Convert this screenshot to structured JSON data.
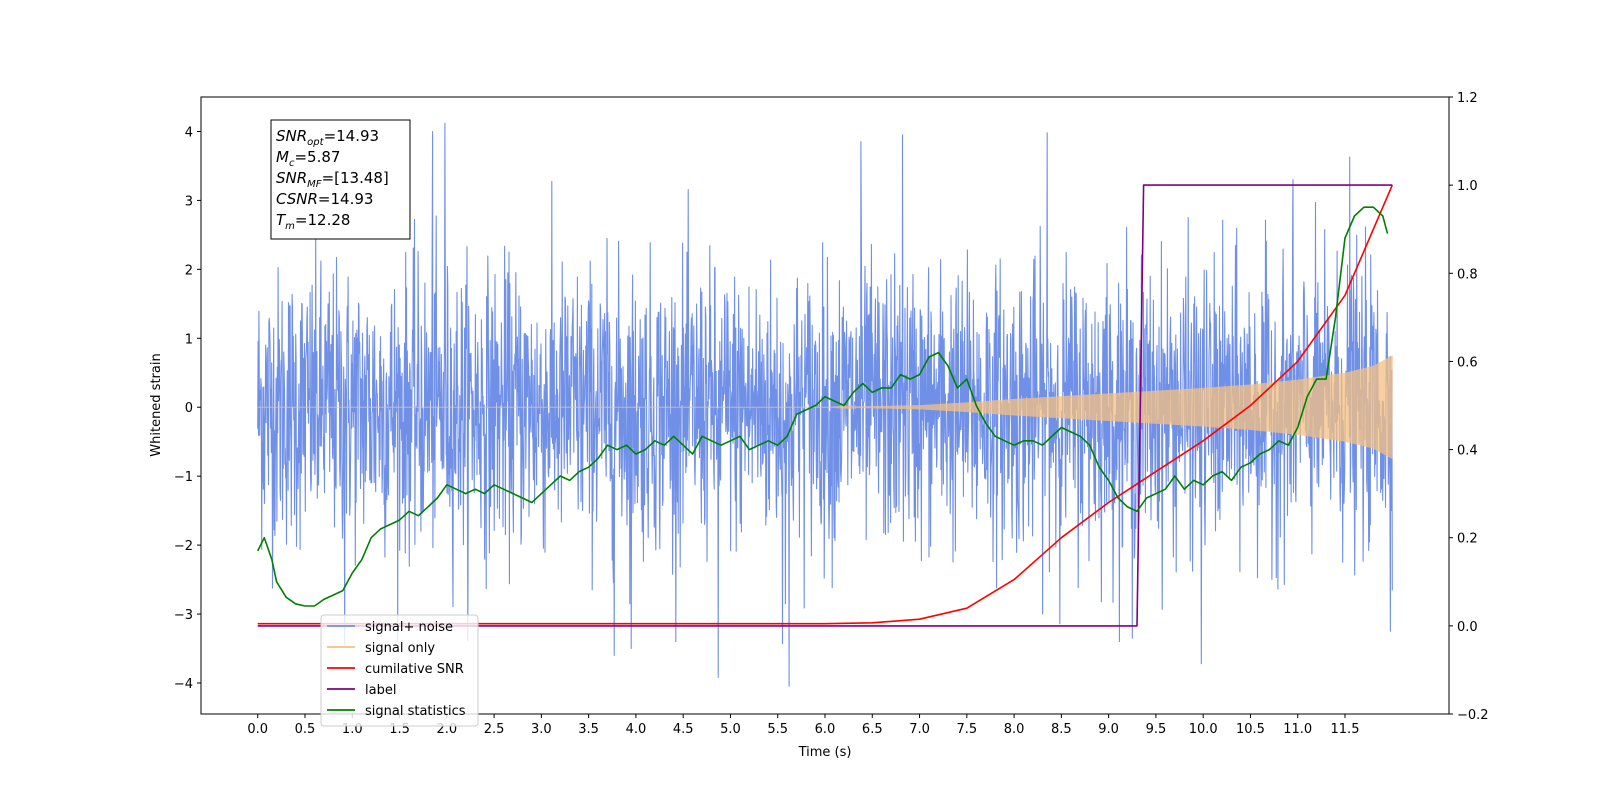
{
  "chart_data": {
    "type": "line",
    "xlabel": "Time (s)",
    "ylabel": "Whitened strain",
    "xlim": [
      -0.6,
      12.6
    ],
    "ylim": [
      -4.45,
      4.5
    ],
    "y2lim": [
      -0.2,
      1.2
    ],
    "x_ticks": [
      0.0,
      0.5,
      1.0,
      1.5,
      2.0,
      2.5,
      3.0,
      3.5,
      4.0,
      4.5,
      5.0,
      5.5,
      6.0,
      6.5,
      7.0,
      7.5,
      8.0,
      8.5,
      9.0,
      9.5,
      10.0,
      10.5,
      11.0,
      11.5
    ],
    "x_tick_labels": [
      "0.0",
      "0.5",
      "1.0",
      "1.5",
      "2.0",
      "2.5",
      "3.0",
      "3.5",
      "4.0",
      "4.5",
      "5.0",
      "5.5",
      "6.0",
      "6.5",
      "7.0",
      "7.5",
      "8.0",
      "8.5",
      "9.0",
      "9.5",
      "10.0",
      "10.5",
      "11.0",
      "11.5"
    ],
    "y_ticks": [
      -4,
      -3,
      -2,
      -1,
      0,
      1,
      2,
      3,
      4
    ],
    "y_tick_labels": [
      "−4",
      "−3",
      "−2",
      "−1",
      "0",
      "1",
      "2",
      "3",
      "4"
    ],
    "y2_ticks": [
      -0.2,
      0.0,
      0.2,
      0.4,
      0.6,
      0.8,
      1.0,
      1.2
    ],
    "y2_tick_labels": [
      "−0.2",
      "0.0",
      "0.2",
      "0.4",
      "0.6",
      "0.8",
      "1.0",
      "1.2"
    ],
    "legend_position": "lower-left",
    "annotation_lines": [
      {
        "main": "SNR",
        "sub": "opt",
        "rest": "=14.93"
      },
      {
        "main": "M",
        "sub": "c",
        "rest": "=5.87"
      },
      {
        "main": "SNR",
        "sub": "MF",
        "rest": "=[13.48]"
      },
      {
        "main": "CSNR",
        "sub": "",
        "rest": "=14.93"
      },
      {
        "main": "T",
        "sub": "m",
        "rest": "=12.28"
      }
    ],
    "series": [
      {
        "name": "signal+ noise",
        "axis": "left",
        "color": "#7090e8",
        "x_range": [
          0.0,
          12.0
        ],
        "noise_band_sigma": 1.0,
        "peaks": [
          {
            "x": 0.92,
            "y": -3.45
          },
          {
            "x": 1.85,
            "y": 4.0
          },
          {
            "x": 1.98,
            "y": 4.12
          },
          {
            "x": 3.77,
            "y": -3.6
          },
          {
            "x": 3.95,
            "y": -3.5
          },
          {
            "x": 4.87,
            "y": -3.92
          },
          {
            "x": 5.55,
            "y": -3.43
          },
          {
            "x": 5.62,
            "y": -4.05
          },
          {
            "x": 6.38,
            "y": 3.85
          },
          {
            "x": 6.82,
            "y": 3.95
          },
          {
            "x": 8.35,
            "y": 3.98
          },
          {
            "x": 9.25,
            "y": -3.35
          },
          {
            "x": 9.98,
            "y": -3.72
          },
          {
            "x": 10.95,
            "y": 3.3
          },
          {
            "x": 11.55,
            "y": 3.63
          },
          {
            "x": 11.98,
            "y": -3.25
          }
        ]
      },
      {
        "name": "signal only",
        "axis": "left",
        "color": "#f5c080",
        "envelope": {
          "x": [
            0.0,
            6.0,
            7.0,
            7.5,
            8.0,
            8.5,
            9.0,
            9.5,
            10.0,
            10.5,
            11.0,
            11.5,
            11.8,
            12.0
          ],
          "amplitude": [
            0.0,
            0.0,
            0.03,
            0.07,
            0.12,
            0.16,
            0.2,
            0.24,
            0.28,
            0.33,
            0.4,
            0.5,
            0.6,
            0.75
          ]
        }
      },
      {
        "name": "cumilative SNR",
        "axis": "right",
        "color": "#ff0000",
        "x": [
          0.0,
          4.0,
          6.0,
          6.5,
          7.0,
          7.5,
          8.0,
          8.5,
          9.0,
          9.5,
          10.0,
          10.5,
          11.0,
          11.5,
          12.0
        ],
        "y": [
          0.005,
          0.005,
          0.005,
          0.007,
          0.015,
          0.04,
          0.105,
          0.2,
          0.28,
          0.35,
          0.42,
          0.5,
          0.6,
          0.75,
          1.0
        ]
      },
      {
        "name": "label",
        "axis": "right",
        "color": "#800080",
        "x": [
          0.0,
          9.3,
          9.37,
          12.0
        ],
        "y": [
          0.0,
          0.0,
          1.0,
          1.0
        ]
      },
      {
        "name": "signal statistics",
        "axis": "right",
        "color": "#008000",
        "x": [
          0.0,
          0.07,
          0.15,
          0.2,
          0.3,
          0.4,
          0.5,
          0.6,
          0.7,
          0.8,
          0.9,
          1.0,
          1.1,
          1.2,
          1.3,
          1.4,
          1.5,
          1.6,
          1.7,
          1.8,
          1.9,
          2.0,
          2.1,
          2.2,
          2.3,
          2.4,
          2.5,
          2.6,
          2.7,
          2.8,
          2.9,
          3.0,
          3.1,
          3.2,
          3.3,
          3.4,
          3.5,
          3.6,
          3.7,
          3.8,
          3.9,
          4.0,
          4.1,
          4.2,
          4.3,
          4.4,
          4.5,
          4.6,
          4.7,
          4.8,
          4.9,
          5.0,
          5.1,
          5.2,
          5.3,
          5.4,
          5.5,
          5.6,
          5.7,
          5.8,
          5.9,
          6.0,
          6.1,
          6.2,
          6.3,
          6.4,
          6.5,
          6.6,
          6.7,
          6.8,
          6.9,
          7.0,
          7.1,
          7.2,
          7.3,
          7.4,
          7.5,
          7.6,
          7.7,
          7.8,
          7.9,
          8.0,
          8.1,
          8.2,
          8.3,
          8.4,
          8.5,
          8.6,
          8.7,
          8.8,
          8.9,
          9.0,
          9.1,
          9.2,
          9.3,
          9.4,
          9.5,
          9.6,
          9.7,
          9.8,
          9.9,
          10.0,
          10.1,
          10.2,
          10.3,
          10.4,
          10.5,
          10.6,
          10.7,
          10.8,
          10.9,
          11.0,
          11.1,
          11.2,
          11.3,
          11.4,
          11.5,
          11.6,
          11.7,
          11.8,
          11.9,
          11.95
        ],
        "y": [
          0.17,
          0.2,
          0.15,
          0.1,
          0.065,
          0.05,
          0.045,
          0.045,
          0.06,
          0.07,
          0.08,
          0.12,
          0.15,
          0.2,
          0.22,
          0.23,
          0.24,
          0.26,
          0.25,
          0.27,
          0.29,
          0.32,
          0.31,
          0.3,
          0.31,
          0.3,
          0.32,
          0.31,
          0.3,
          0.29,
          0.28,
          0.3,
          0.32,
          0.34,
          0.33,
          0.35,
          0.36,
          0.38,
          0.41,
          0.4,
          0.41,
          0.39,
          0.4,
          0.42,
          0.41,
          0.43,
          0.41,
          0.39,
          0.43,
          0.42,
          0.41,
          0.42,
          0.43,
          0.4,
          0.41,
          0.42,
          0.41,
          0.43,
          0.48,
          0.49,
          0.5,
          0.52,
          0.51,
          0.5,
          0.53,
          0.55,
          0.53,
          0.54,
          0.54,
          0.57,
          0.56,
          0.57,
          0.61,
          0.62,
          0.59,
          0.54,
          0.56,
          0.5,
          0.46,
          0.43,
          0.42,
          0.41,
          0.42,
          0.42,
          0.41,
          0.43,
          0.45,
          0.44,
          0.43,
          0.41,
          0.36,
          0.33,
          0.29,
          0.27,
          0.26,
          0.29,
          0.3,
          0.31,
          0.34,
          0.31,
          0.33,
          0.32,
          0.34,
          0.35,
          0.33,
          0.36,
          0.37,
          0.39,
          0.4,
          0.42,
          0.41,
          0.45,
          0.52,
          0.56,
          0.56,
          0.7,
          0.88,
          0.93,
          0.95,
          0.95,
          0.93,
          0.89
        ]
      }
    ],
    "legend": [
      {
        "label": "signal+ noise",
        "color": "#7090e8"
      },
      {
        "label": "signal only",
        "color": "#f5c080"
      },
      {
        "label": "cumilative SNR",
        "color": "#ff0000"
      },
      {
        "label": "label",
        "color": "#800080"
      },
      {
        "label": "signal statistics",
        "color": "#008000"
      }
    ]
  }
}
